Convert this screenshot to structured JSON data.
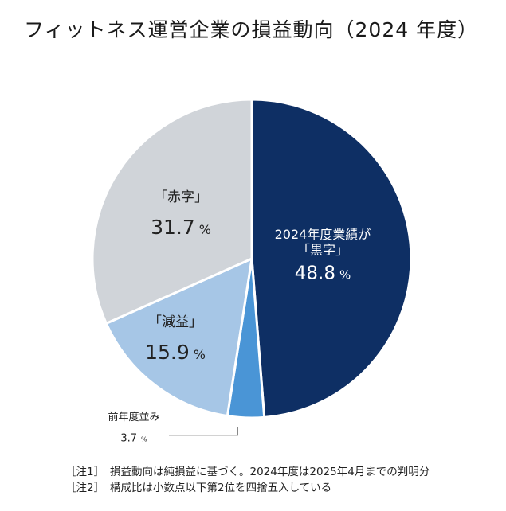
{
  "title": "フィットネス運営企業の損益動向（2024 年度）",
  "chart_data": {
    "type": "pie",
    "title": "フィットネス運営企業の損益動向（2024 年度）",
    "unit": "%",
    "slices": [
      {
        "name": "黒字",
        "label_lines": [
          "2024年度業績が",
          "「黒字」"
        ],
        "value": 48.8,
        "value_text": "48.8",
        "color": "#0e2f64",
        "text_color": "#ffffff"
      },
      {
        "name": "前年度並み",
        "label_lines": [
          "前年度並み"
        ],
        "value": 3.7,
        "value_text": "3.7",
        "color": "#4a95d6",
        "text_color": "#222222"
      },
      {
        "name": "減益",
        "label_lines": [
          "「減益」"
        ],
        "value": 15.9,
        "value_text": "15.9",
        "color": "#a6c6e6",
        "text_color": "#222222"
      },
      {
        "name": "赤字",
        "label_lines": [
          "「赤字」"
        ],
        "value": 31.7,
        "value_text": "31.7",
        "color": "#d0d4d9",
        "text_color": "#222222"
      }
    ]
  },
  "notes": [
    {
      "tag": "［注1］",
      "text": "損益動向は純損益に基づく。2024年度は2025年4月までの判明分"
    },
    {
      "tag": "［注2］",
      "text": "構成比は小数点以下第2位を四捨五入している"
    }
  ]
}
